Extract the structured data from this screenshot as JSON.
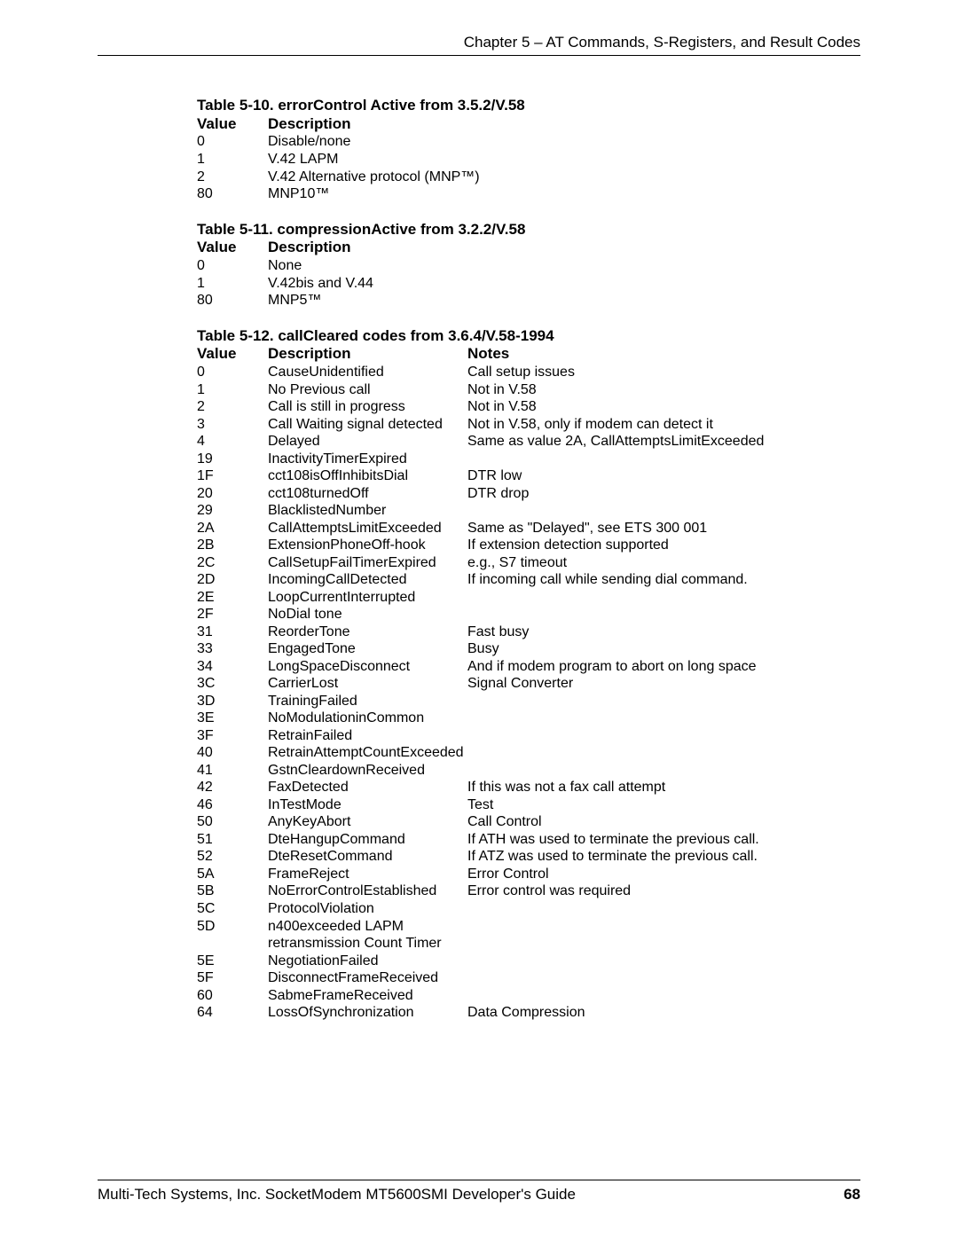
{
  "header": {
    "chapter": "Chapter 5 – AT Commands, S-Registers, and Result Codes"
  },
  "footer": {
    "text": "Multi-Tech Systems, Inc. SocketModem MT5600SMI Developer's Guide",
    "page": "68"
  },
  "table10": {
    "title": "Table 5-10. errorControl Active from 3.5.2/V.58",
    "col1": "Value",
    "col2": "Description",
    "rows": [
      {
        "v": "0",
        "d": "Disable/none"
      },
      {
        "v": "1",
        "d": "V.42 LAPM"
      },
      {
        "v": "2",
        "d": "V.42 Alternative protocol (MNP™)"
      },
      {
        "v": "80",
        "d": "MNP10™"
      }
    ]
  },
  "table11": {
    "title": "Table 5-11. compressionActive from 3.2.2/V.58",
    "col1": "Value",
    "col2": "Description",
    "rows": [
      {
        "v": "0",
        "d": "None"
      },
      {
        "v": "1",
        "d": "V.42bis and V.44"
      },
      {
        "v": "80",
        "d": "MNP5™"
      }
    ]
  },
  "table12": {
    "title": "Table 5-12. callCleared codes from 3.6.4/V.58-1994",
    "col1": "Value",
    "col2": "Description",
    "col3": "Notes",
    "rows": [
      {
        "v": "0",
        "d": "CauseUnidentified",
        "n": "Call setup issues"
      },
      {
        "v": "1",
        "d": "No Previous call",
        "n": "Not in V.58"
      },
      {
        "v": "2",
        "d": "Call is still in progress",
        "n": "Not in V.58"
      },
      {
        "v": "3",
        "d": "Call Waiting signal detected",
        "n": "Not in V.58, only if modem can detect it"
      },
      {
        "v": "4",
        "d": "Delayed",
        "n": "Same as value 2A, CallAttemptsLimitExceeded"
      },
      {
        "v": "19",
        "d": "InactivityTimerExpired",
        "n": ""
      },
      {
        "v": "1F",
        "d": "cct108isOffInhibitsDial",
        "n": "DTR low"
      },
      {
        "v": "20",
        "d": "cct108turnedOff",
        "n": "DTR drop"
      },
      {
        "v": "29",
        "d": "BlacklistedNumber",
        "n": ""
      },
      {
        "v": "2A",
        "d": "CallAttemptsLimitExceeded",
        "n": "Same as \"Delayed\", see ETS 300 001"
      },
      {
        "v": "2B",
        "d": "ExtensionPhoneOff-hook",
        "n": "If extension detection supported"
      },
      {
        "v": "2C",
        "d": "CallSetupFailTimerExpired",
        "n": "e.g., S7 timeout"
      },
      {
        "v": "2D",
        "d": "IncomingCallDetected",
        "n": "If incoming call while sending dial command."
      },
      {
        "v": "2E",
        "d": "LoopCurrentInterrupted",
        "n": ""
      },
      {
        "v": "2F",
        "d": "NoDial tone",
        "n": ""
      },
      {
        "v": "31",
        "d": "ReorderTone",
        "n": "Fast busy"
      },
      {
        "v": "33",
        "d": "EngagedTone",
        "n": "Busy"
      },
      {
        "v": "34",
        "d": "LongSpaceDisconnect",
        "n": "And if modem program to abort on long space"
      },
      {
        "v": "3C",
        "d": "CarrierLost",
        "n": "Signal Converter"
      },
      {
        "v": "3D",
        "d": "TrainingFailed",
        "n": ""
      },
      {
        "v": "3E",
        "d": "NoModulationinCommon",
        "n": ""
      },
      {
        "v": "3F",
        "d": "RetrainFailed",
        "n": ""
      },
      {
        "v": "40",
        "d": "RetrainAttemptCountExceeded",
        "n": ""
      },
      {
        "v": "41",
        "d": "GstnCleardownReceived",
        "n": ""
      },
      {
        "v": "42",
        "d": "FaxDetected",
        "n": "If this was not a fax call attempt"
      },
      {
        "v": "46",
        "d": "InTestMode",
        "n": "Test"
      },
      {
        "v": "50",
        "d": "AnyKeyAbort",
        "n": "Call Control"
      },
      {
        "v": "51",
        "d": "DteHangupCommand",
        "n": "If ATH was used to terminate the previous call."
      },
      {
        "v": "52",
        "d": "DteResetCommand",
        "n": "If ATZ was used to terminate the previous call."
      },
      {
        "v": "5A",
        "d": "FrameReject",
        "n": "Error Control"
      },
      {
        "v": "5B",
        "d": "NoErrorControlEstablished",
        "n": "Error control was required"
      },
      {
        "v": "5C",
        "d": "ProtocolViolation",
        "n": ""
      },
      {
        "v": "5D",
        "d": "n400exceeded  LAPM retransmission Count Timer",
        "n": ""
      },
      {
        "v": "5E",
        "d": "NegotiationFailed",
        "n": ""
      },
      {
        "v": "5F",
        "d": "DisconnectFrameReceived",
        "n": ""
      },
      {
        "v": "60",
        "d": "SabmeFrameReceived",
        "n": ""
      },
      {
        "v": "64",
        "d": "LossOfSynchronization",
        "n": "Data Compression"
      }
    ]
  }
}
